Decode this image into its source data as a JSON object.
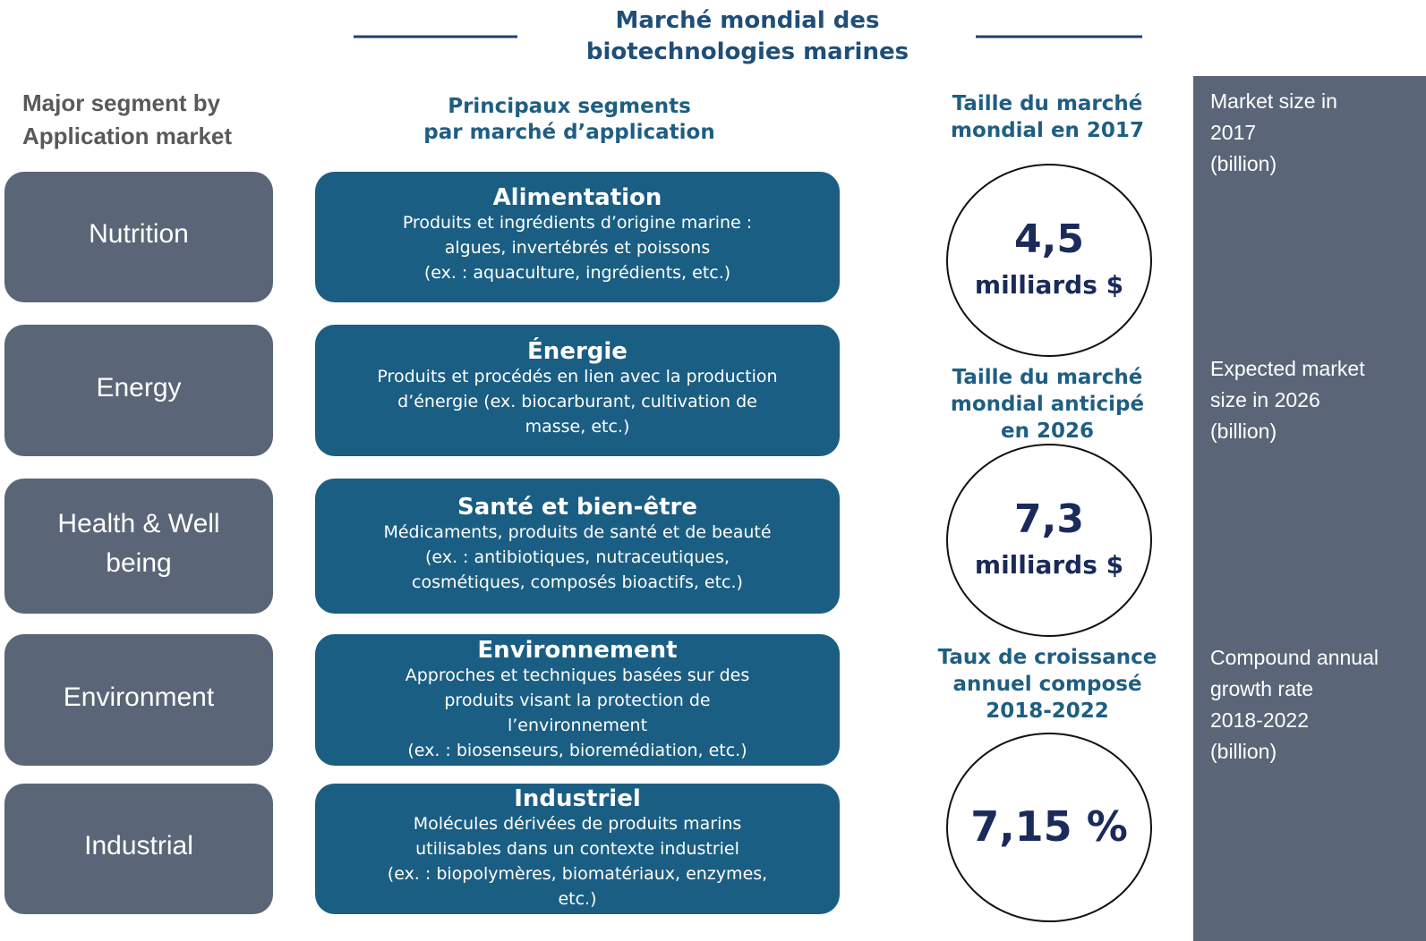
{
  "title": [
    "Marché mondial des",
    "biotechnologies marines"
  ],
  "left_header": [
    "Major segment by",
    "Application market"
  ],
  "middle_header": [
    "Principaux segments",
    "par marché d’application"
  ],
  "rows": [
    {
      "label": [
        "Nutrition"
      ],
      "segment_title": "Alimentation",
      "segment_lines": [
        "Produits et ingrédients d’origine marine :",
        "algues, invertébrés et poissons",
        "(ex. : aquaculture, ingrédients, etc.)"
      ]
    },
    {
      "label": [
        "Energy"
      ],
      "segment_title": "Énergie",
      "segment_lines": [
        "Produits et procédés en lien avec la production",
        "d’énergie  (ex. biocarburant, cultivation de",
        "masse, etc.)"
      ]
    },
    {
      "label": [
        "Health & Well",
        "being"
      ],
      "segment_title": "Santé et bien-être",
      "segment_lines": [
        "Médicaments, produits de santé et de beauté",
        "(ex. : antibiotiques, nutraceutiques,",
        "cosmétiques, composés bioactifs, etc.)"
      ]
    },
    {
      "label": [
        "Environment"
      ],
      "segment_title": "Environnement",
      "segment_lines": [
        "Approches et techniques basées  sur des",
        "produits visant la protection de",
        "l’environnement",
        "(ex. : biosenseurs,  bioremédiation, etc.)"
      ]
    },
    {
      "label": [
        "Industrial"
      ],
      "segment_title": "Industriel",
      "segment_lines": [
        "Molécules dérivées de produits marins",
        "utilisables dans un contexte industriel",
        "(ex. : biopolymères, biomatériaux, enzymes,",
        "etc.)"
      ]
    }
  ],
  "metrics": [
    {
      "heading": [
        "Taille du marché",
        "mondial en 2017"
      ],
      "value": "4,5",
      "unit": "milliards $",
      "note": [
        "Market size in",
        "2017",
        "(billion)"
      ]
    },
    {
      "heading": [
        "Taille du marché",
        "mondial anticipé",
        "en 2026"
      ],
      "value": "7,3",
      "unit": "milliards $",
      "note": [
        "Expected market",
        "size in 2026",
        "(billion)"
      ]
    },
    {
      "heading": [
        "Taux de croissance",
        "annuel composé",
        "2018-2022"
      ],
      "value": "7,15 %",
      "note": [
        "Compound annual",
        "growth rate",
        "2018-2022",
        "(billion)"
      ]
    }
  ]
}
